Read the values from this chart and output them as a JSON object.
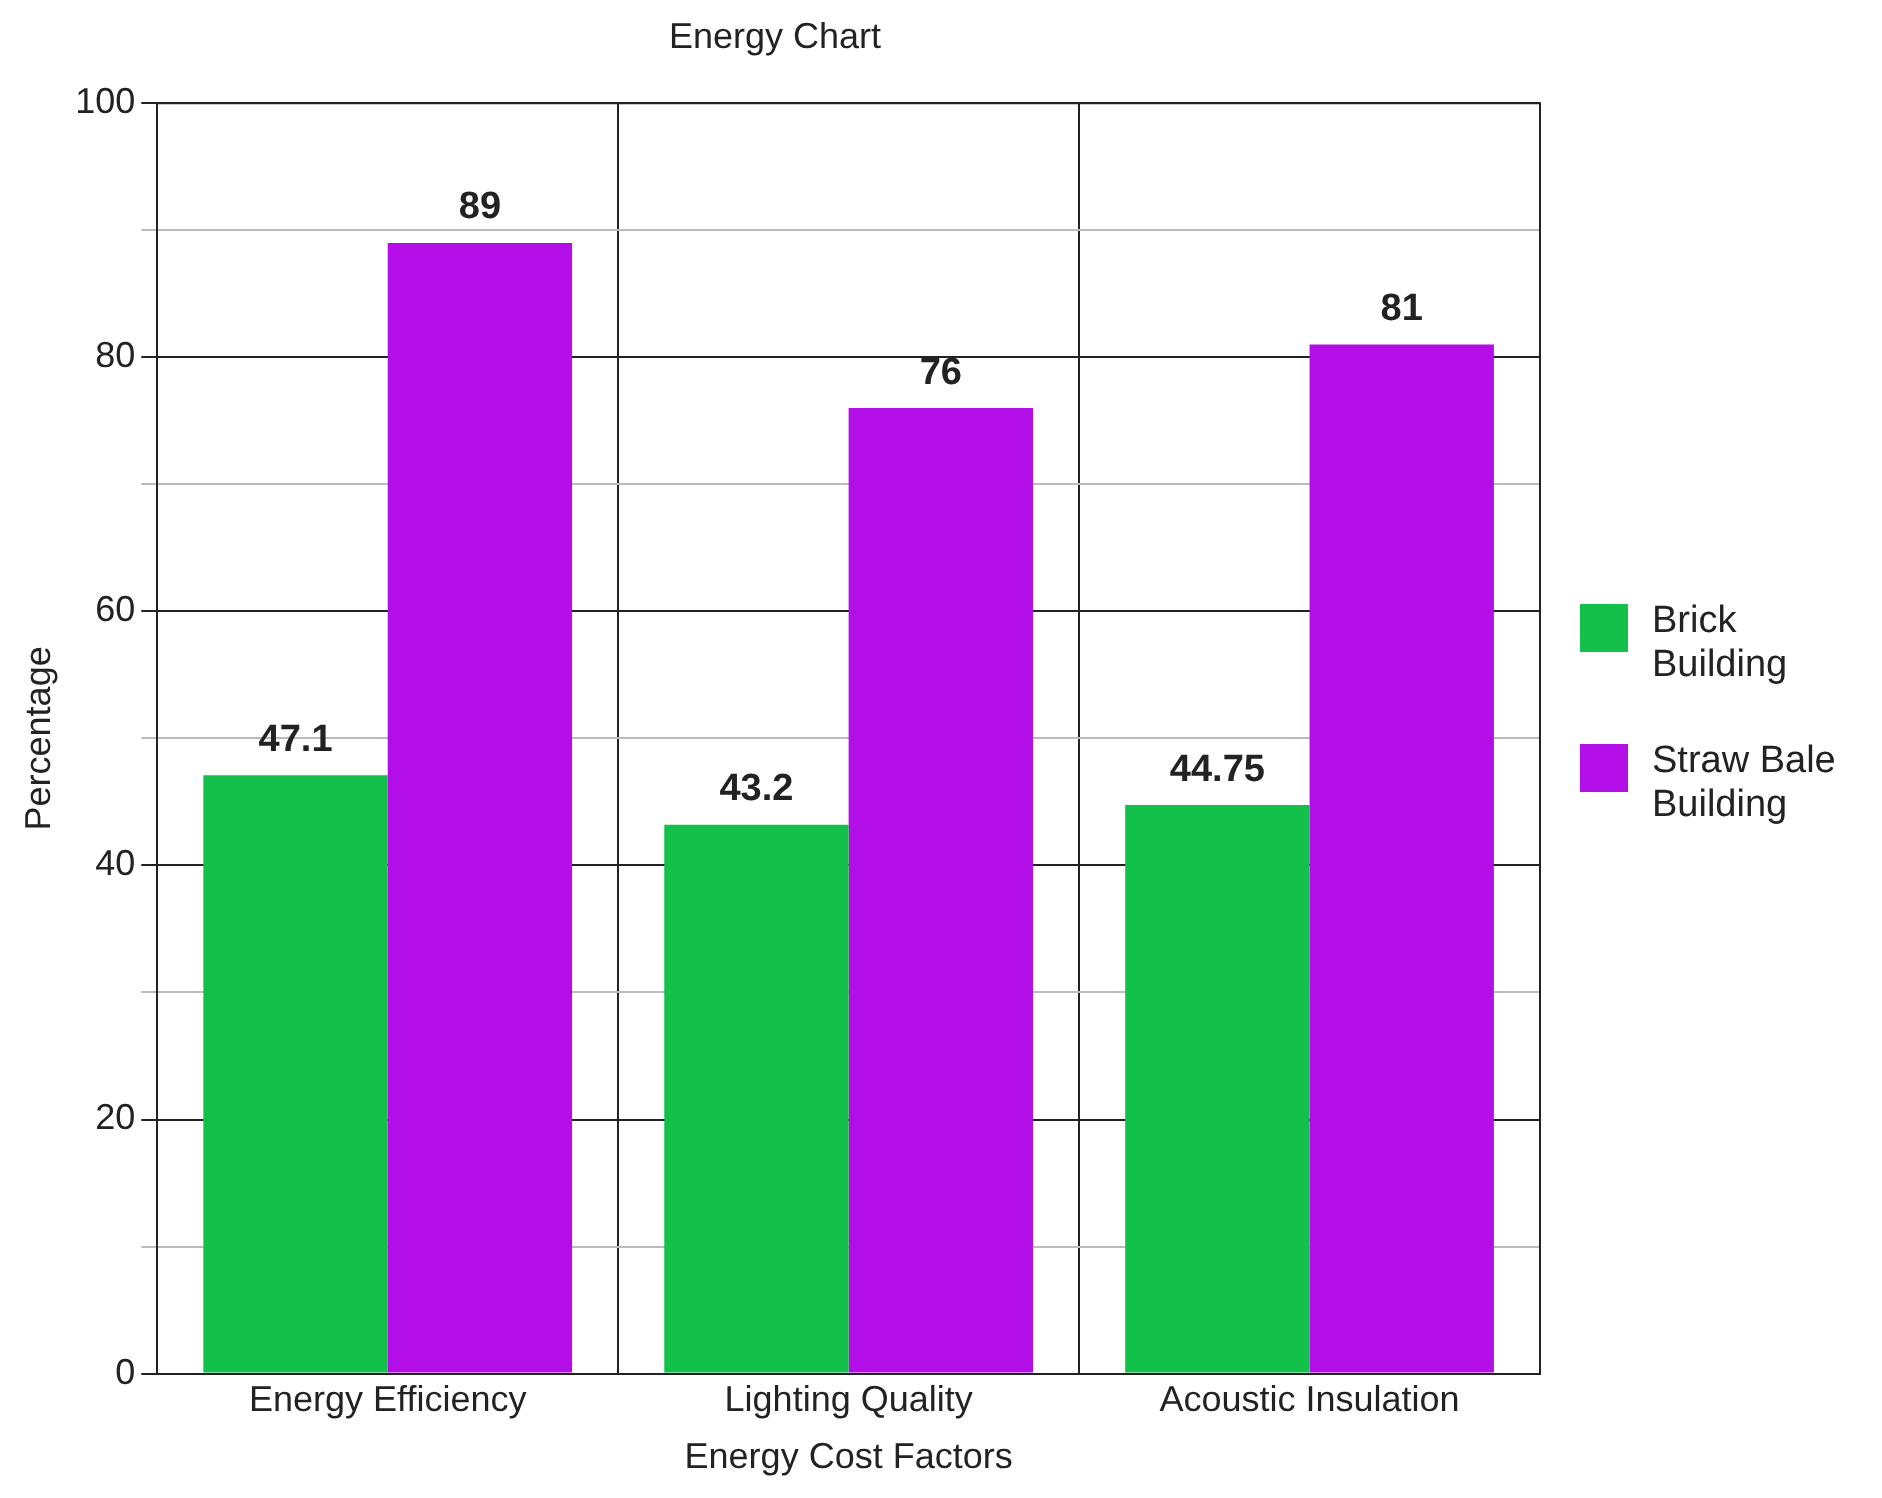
{
  "chart_data": {
    "type": "bar",
    "title": "Energy Chart",
    "xlabel": "Energy Cost Factors",
    "ylabel": "Percentage",
    "categories": [
      "Energy Efficiency",
      "Lighting Quality",
      "Acoustic Insulation"
    ],
    "series": [
      {
        "name": "Brick Building",
        "color": "#12c04a",
        "values": [
          47.1,
          43.2,
          44.75
        ]
      },
      {
        "name": "Straw Bale Building",
        "color": "#b40ee8",
        "values": [
          89,
          76,
          81
        ]
      }
    ],
    "ylim": [
      0,
      100
    ],
    "yticks": [
      0,
      {
        "value": 10,
        "label": null
      },
      20,
      {
        "value": 30,
        "label": null
      },
      40,
      {
        "value": 50,
        "label": null
      },
      60,
      {
        "value": 70,
        "label": null
      },
      80,
      {
        "value": 90,
        "label": null
      },
      100
    ],
    "grid": true,
    "legend": "right",
    "data_labels": true
  }
}
